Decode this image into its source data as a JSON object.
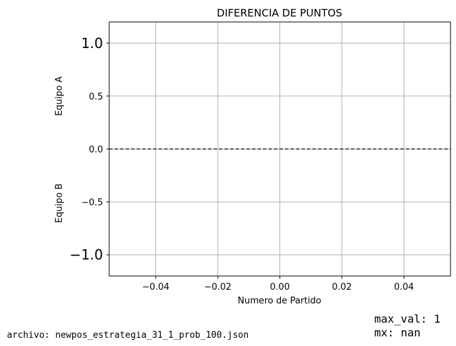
{
  "chart_data": {
    "type": "line",
    "title": "DIFERENCIA DE PUNTOS",
    "xlabel": "Numero de Partido",
    "ylabel_top": "Equipo A",
    "ylabel_bottom": "Equipo B",
    "xlim": [
      -0.055,
      0.055
    ],
    "ylim": [
      -1.2,
      1.2
    ],
    "xticks": [
      -0.04,
      -0.02,
      0.0,
      0.02,
      0.04
    ],
    "xtick_labels": [
      "−0.04",
      "−0.02",
      "0.00",
      "0.02",
      "0.04"
    ],
    "yticks": [
      1.0,
      0.5,
      0.0,
      -0.5,
      -1.0
    ],
    "ytick_labels": [
      "1.0",
      "0.5",
      "0.0",
      "−0.5",
      "−1.0"
    ],
    "ytick_large": [
      1.0,
      -1.0
    ],
    "grid": true,
    "series": [],
    "reference_line": {
      "y": 0,
      "style": "dashed",
      "color": "#000000"
    }
  },
  "footer": {
    "archivo": "archivo: newpos_estrategia_31_1_prob_100.json",
    "max_val": "max_val: 1",
    "mx": "mx: nan"
  }
}
